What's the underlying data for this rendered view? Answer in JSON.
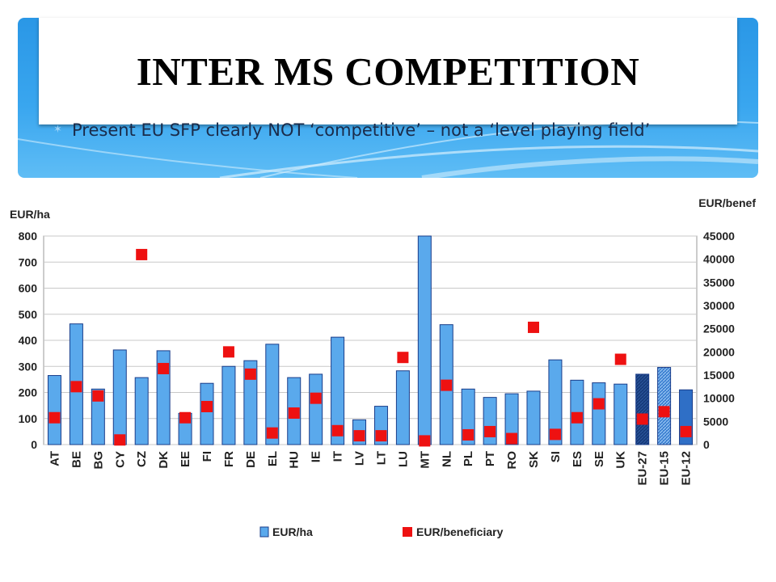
{
  "slide": {
    "title": "INTER MS COMPETITION",
    "bullet": "Present EU SFP clearly NOT ‘competitive’ – not a ‘level playing field’",
    "bullet_icon": "star-bullet-icon"
  },
  "chart_data": {
    "type": "bar",
    "categories": [
      "AT",
      "BE",
      "BG",
      "CY",
      "CZ",
      "DK",
      "EE",
      "FI",
      "FR",
      "DE",
      "EL",
      "HU",
      "IE",
      "IT",
      "LV",
      "LT",
      "LU",
      "MT",
      "NL",
      "PL",
      "PT",
      "RO",
      "SK",
      "SI",
      "ES",
      "SE",
      "UK",
      "EU-27",
      "EU-15",
      "EU-12"
    ],
    "series": [
      {
        "name": "EUR/ha",
        "kind": "bar",
        "axis": "left",
        "color": "#5aa9ec",
        "values": [
          265,
          463,
          213,
          363,
          257,
          360,
          120,
          235,
          300,
          322,
          385,
          257,
          270,
          412,
          95,
          147,
          283,
          800,
          460,
          213,
          181,
          195,
          205,
          325,
          247,
          237,
          232,
          270,
          296,
          210
        ]
      },
      {
        "name": "EUR/beneficiary",
        "kind": "scatter",
        "axis": "right",
        "color": "#ee1111",
        "values": [
          5800,
          12500,
          10500,
          1000,
          41000,
          16400,
          5800,
          8200,
          20000,
          15200,
          2500,
          6800,
          10000,
          3000,
          1900,
          1900,
          18800,
          800,
          12800,
          2100,
          2800,
          1300,
          25300,
          2200,
          5800,
          8800,
          18400,
          5500,
          7100,
          2800
        ]
      }
    ],
    "yleft_label": "EUR/ha",
    "yright_label": "EUR/benef",
    "yleft_ticks": [
      0,
      100,
      200,
      300,
      400,
      500,
      600,
      700,
      800
    ],
    "yright_ticks": [
      0,
      5000,
      10000,
      15000,
      20000,
      25000,
      30000,
      35000,
      40000,
      45000
    ],
    "ylim_left": [
      0,
      800
    ],
    "ylim_right": [
      0,
      45000
    ],
    "legend": [
      "EUR/ha",
      "EUR/beneficiary"
    ],
    "legend_position": "bottom",
    "grid": true
  }
}
